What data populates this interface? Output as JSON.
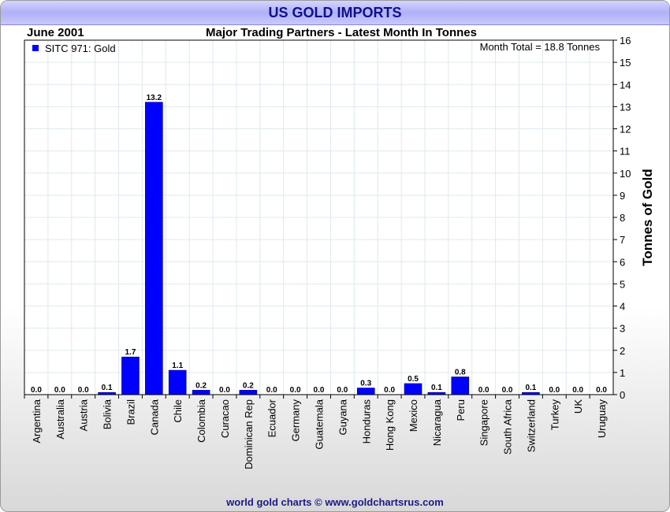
{
  "title": "US GOLD IMPORTS",
  "header_left": "June 2001",
  "header_center": "Major Trading Partners - Latest Month In Tonnes",
  "footer": "world gold charts © www.goldchartsrus.com",
  "colors": {
    "bar": "#0000ff",
    "grid": "#dfe9ef",
    "title_text": "#10108a"
  },
  "chart_data": {
    "type": "bar",
    "title": "US GOLD IMPORTS",
    "subtitle": "Major Trading Partners - Latest Month In Tonnes",
    "xlabel": "",
    "ylabel": "Tonnes of Gold",
    "ylim": [
      0,
      16
    ],
    "yticks": [
      "0",
      "1",
      "2",
      "3",
      "4",
      "5",
      "6",
      "7",
      "8",
      "9",
      "10",
      "11",
      "12",
      "13",
      "14",
      "15",
      "16"
    ],
    "grid": true,
    "legend": {
      "entries": [
        "SITC 971: Gold"
      ],
      "placement": "top-left"
    },
    "annotation": "Month Total = 18.8 Tonnes",
    "categories": [
      "Argentina",
      "Australia",
      "Austria",
      "Bolivia",
      "Brazil",
      "Canada",
      "Chile",
      "Colombia",
      "Curacao",
      "Dominican Rep",
      "Ecuador",
      "Germany",
      "Guatemala",
      "Guyana",
      "Honduras",
      "Hong Kong",
      "Mexico",
      "Nicaragua",
      "Peru",
      "Singapore",
      "South Africa",
      "Switzerland",
      "Turkey",
      "UK",
      "Uruguay"
    ],
    "series": [
      {
        "name": "SITC 971: Gold",
        "values": [
          0.0,
          0.0,
          0.0,
          0.1,
          1.7,
          13.2,
          1.1,
          0.2,
          0.0,
          0.2,
          0.0,
          0.0,
          0.0,
          0.0,
          0.3,
          0.0,
          0.5,
          0.1,
          0.8,
          0.0,
          0.0,
          0.1,
          0.0,
          0.0,
          0.0
        ],
        "labels": [
          "0.0",
          "0.0",
          "0.0",
          "0.1",
          "1.7",
          "13.2",
          "1.1",
          "0.2",
          "0.0",
          "0.2",
          "0.0",
          "0.0",
          "0.0",
          "0.0",
          "0.3",
          "0.0",
          "0.5",
          "0.1",
          "0.8",
          "0.0",
          "0.0",
          "0.1",
          "0.0",
          "0.0",
          "0.0"
        ]
      }
    ]
  }
}
